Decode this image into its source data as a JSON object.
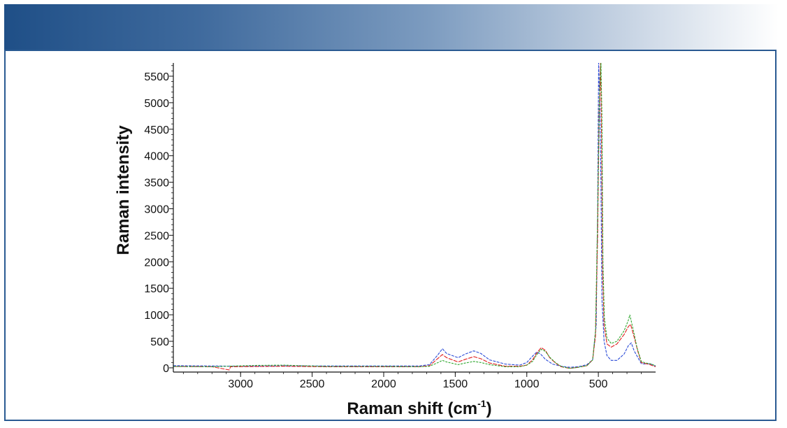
{
  "chart_data": {
    "type": "line",
    "xlabel": "Raman shift (cm",
    "xlabel_sup": "-1",
    "xlabel_end": ")",
    "ylabel": "Raman intensity",
    "xlim": [
      3470,
      100
    ],
    "ylim": [
      -80,
      5750
    ],
    "x_ticks": [
      3000,
      2500,
      2000,
      1500,
      1000,
      500
    ],
    "y_ticks": [
      0,
      500,
      1000,
      1500,
      2000,
      2500,
      3000,
      3500,
      4000,
      4500,
      5000,
      5500
    ],
    "grid": false,
    "series": [
      {
        "color": "#2a4bd7",
        "points": [
          [
            3470,
            40
          ],
          [
            3200,
            35
          ],
          [
            3000,
            30
          ],
          [
            2700,
            38
          ],
          [
            2400,
            35
          ],
          [
            2000,
            35
          ],
          [
            1750,
            35
          ],
          [
            1680,
            60
          ],
          [
            1620,
            250
          ],
          [
            1590,
            360
          ],
          [
            1560,
            270
          ],
          [
            1480,
            190
          ],
          [
            1430,
            260
          ],
          [
            1370,
            320
          ],
          [
            1320,
            270
          ],
          [
            1260,
            150
          ],
          [
            1150,
            70
          ],
          [
            1050,
            50
          ],
          [
            1000,
            100
          ],
          [
            960,
            220
          ],
          [
            930,
            300
          ],
          [
            900,
            250
          ],
          [
            870,
            160
          ],
          [
            820,
            70
          ],
          [
            760,
            30
          ],
          [
            700,
            10
          ],
          [
            640,
            20
          ],
          [
            580,
            60
          ],
          [
            540,
            150
          ],
          [
            515,
            800
          ],
          [
            505,
            3000
          ],
          [
            498,
            5750
          ],
          [
            490,
            5000
          ],
          [
            482,
            3500
          ],
          [
            475,
            1300
          ],
          [
            460,
            500
          ],
          [
            440,
            230
          ],
          [
            410,
            140
          ],
          [
            370,
            140
          ],
          [
            320,
            260
          ],
          [
            290,
            420
          ],
          [
            270,
            470
          ],
          [
            250,
            320
          ],
          [
            225,
            200
          ],
          [
            200,
            80
          ],
          [
            170,
            70
          ],
          [
            140,
            80
          ],
          [
            100,
            30
          ]
        ]
      },
      {
        "color": "#e02020",
        "points": [
          [
            3470,
            25
          ],
          [
            3200,
            20
          ],
          [
            3080,
            -40
          ],
          [
            3070,
            20
          ],
          [
            2700,
            30
          ],
          [
            2400,
            20
          ],
          [
            2000,
            20
          ],
          [
            1750,
            20
          ],
          [
            1680,
            40
          ],
          [
            1620,
            180
          ],
          [
            1590,
            250
          ],
          [
            1560,
            190
          ],
          [
            1480,
            110
          ],
          [
            1430,
            160
          ],
          [
            1370,
            210
          ],
          [
            1320,
            170
          ],
          [
            1260,
            90
          ],
          [
            1150,
            30
          ],
          [
            1050,
            30
          ],
          [
            1000,
            50
          ],
          [
            960,
            150
          ],
          [
            930,
            280
          ],
          [
            900,
            380
          ],
          [
            870,
            330
          ],
          [
            840,
            190
          ],
          [
            800,
            90
          ],
          [
            760,
            20
          ],
          [
            700,
            -10
          ],
          [
            640,
            10
          ],
          [
            580,
            40
          ],
          [
            540,
            150
          ],
          [
            520,
            600
          ],
          [
            505,
            2500
          ],
          [
            495,
            4800
          ],
          [
            485,
            5750
          ],
          [
            478,
            4500
          ],
          [
            470,
            1800
          ],
          [
            460,
            800
          ],
          [
            440,
            450
          ],
          [
            410,
            390
          ],
          [
            370,
            450
          ],
          [
            320,
            630
          ],
          [
            290,
            780
          ],
          [
            275,
            820
          ],
          [
            250,
            580
          ],
          [
            225,
            320
          ],
          [
            200,
            100
          ],
          [
            170,
            80
          ],
          [
            140,
            60
          ],
          [
            100,
            20
          ]
        ]
      },
      {
        "color": "#2fa82f",
        "points": [
          [
            3470,
            25
          ],
          [
            3200,
            20
          ],
          [
            2900,
            45
          ],
          [
            2700,
            50
          ],
          [
            2400,
            25
          ],
          [
            2000,
            25
          ],
          [
            1750,
            20
          ],
          [
            1680,
            30
          ],
          [
            1620,
            100
          ],
          [
            1590,
            140
          ],
          [
            1560,
            110
          ],
          [
            1480,
            60
          ],
          [
            1430,
            90
          ],
          [
            1370,
            120
          ],
          [
            1320,
            100
          ],
          [
            1260,
            60
          ],
          [
            1150,
            20
          ],
          [
            1050,
            20
          ],
          [
            1000,
            50
          ],
          [
            960,
            120
          ],
          [
            930,
            250
          ],
          [
            900,
            350
          ],
          [
            870,
            310
          ],
          [
            840,
            200
          ],
          [
            800,
            100
          ],
          [
            760,
            25
          ],
          [
            700,
            -10
          ],
          [
            640,
            10
          ],
          [
            580,
            40
          ],
          [
            540,
            150
          ],
          [
            520,
            700
          ],
          [
            505,
            2900
          ],
          [
            493,
            5000
          ],
          [
            482,
            5750
          ],
          [
            475,
            4800
          ],
          [
            468,
            2000
          ],
          [
            458,
            950
          ],
          [
            440,
            560
          ],
          [
            410,
            460
          ],
          [
            370,
            500
          ],
          [
            320,
            700
          ],
          [
            290,
            900
          ],
          [
            280,
            1000
          ],
          [
            255,
            700
          ],
          [
            230,
            380
          ],
          [
            200,
            120
          ],
          [
            170,
            90
          ],
          [
            140,
            80
          ],
          [
            100,
            40
          ]
        ]
      }
    ]
  }
}
